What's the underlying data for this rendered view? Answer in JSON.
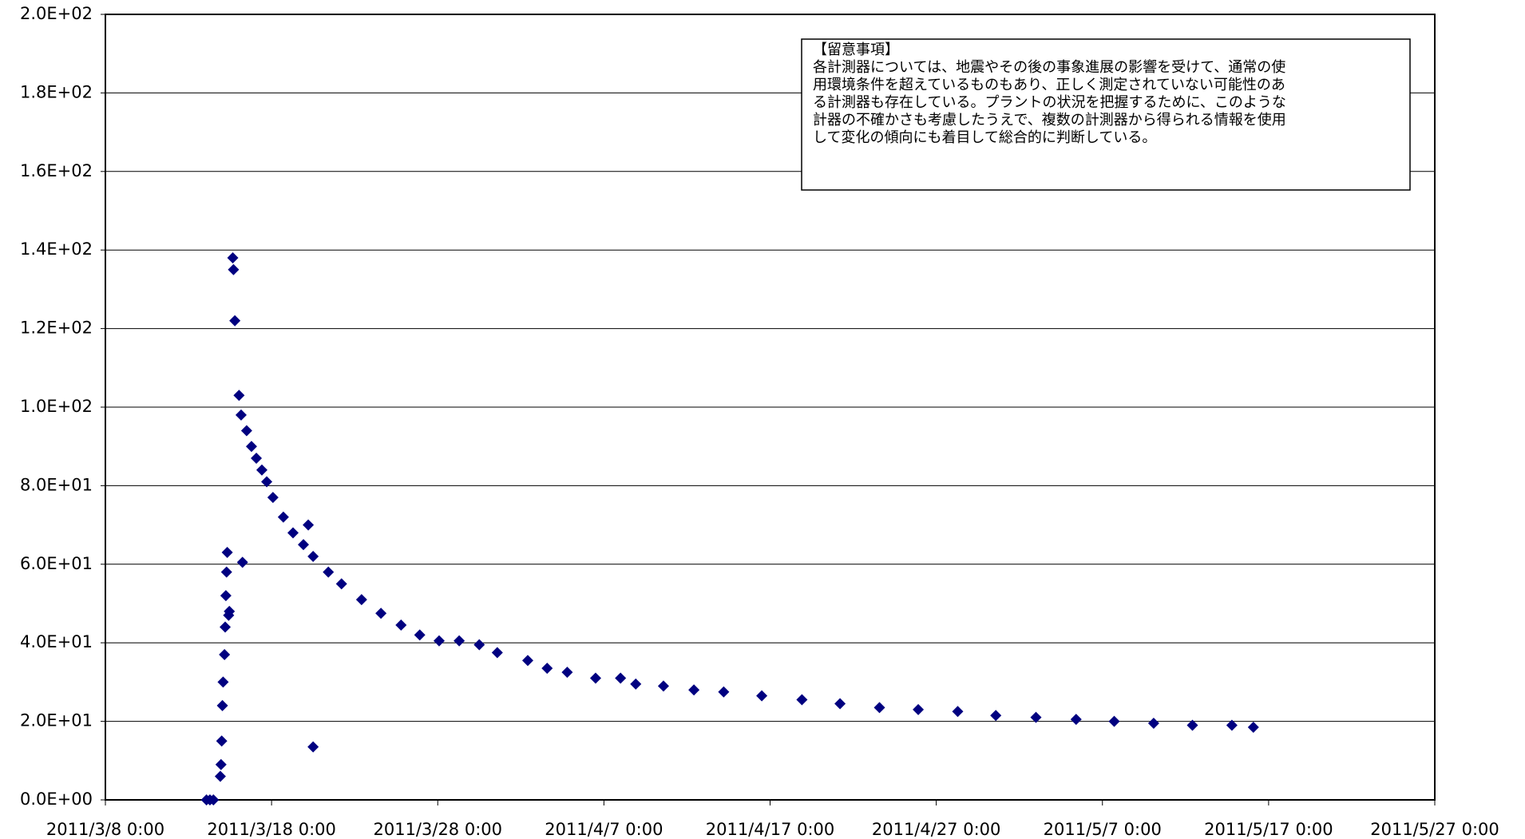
{
  "chart_data": {
    "type": "scatter",
    "color": "#000080",
    "grid": true,
    "annotation": {
      "title": "【留意事項】",
      "lines": [
        "各計測器については、地震やその後の事象進展の影響を受けて、通常の使",
        "用環境条件を超えているものもあり、正しく測定されていない可能性のあ",
        "る計測器も存在している。プラントの状況を把握するために、このような",
        "計器の不確かさも考慮したうえで、複数の計測器から得られる情報を使用",
        "して変化の傾向にも着目して総合的に判断している。"
      ]
    },
    "xlim": [
      "2011/3/8 0:00",
      "2011/5/27 0:00"
    ],
    "xticks": [
      "2011/3/8 0:00",
      "2011/3/18 0:00",
      "2011/3/28 0:00",
      "2011/4/7 0:00",
      "2011/4/17 0:00",
      "2011/4/27 0:00",
      "2011/5/7 0:00",
      "2011/5/17 0:00",
      "2011/5/27 0:00"
    ],
    "ylim": [
      0,
      200
    ],
    "yticks": [
      {
        "value": 0,
        "label": "0.0E+00"
      },
      {
        "value": 20,
        "label": "2.0E+01"
      },
      {
        "value": 40,
        "label": "4.0E+01"
      },
      {
        "value": 60,
        "label": "6.0E+01"
      },
      {
        "value": 80,
        "label": "8.0E+01"
      },
      {
        "value": 100,
        "label": "1.0E+02"
      },
      {
        "value": 120,
        "label": "1.2E+02"
      },
      {
        "value": 140,
        "label": "1.4E+02"
      },
      {
        "value": 160,
        "label": "1.6E+02"
      },
      {
        "value": 180,
        "label": "1.8E+02"
      },
      {
        "value": 200,
        "label": "2.0E+02"
      }
    ],
    "x": [
      "2011/3/14 2:00",
      "2011/3/14 7:00",
      "2011/3/14 12:00",
      "2011/3/14 22:00",
      "2011/3/14 23:00",
      "2011/3/15 0:00",
      "2011/3/15 1:00",
      "2011/3/15 2:00",
      "2011/3/15 4:00",
      "2011/3/15 5:00",
      "2011/3/15 6:00",
      "2011/3/15 7:00",
      "2011/3/15 8:00",
      "2011/3/15 10:00",
      "2011/3/15 11:00",
      "2011/3/15 16:00",
      "2011/3/15 17:00",
      "2011/3/15 19:00",
      "2011/3/16 1:00",
      "2011/3/16 4:00",
      "2011/3/16 6:00",
      "2011/3/16 12:00",
      "2011/3/16 19:00",
      "2011/3/17 2:00",
      "2011/3/17 10:00",
      "2011/3/17 17:00",
      "2011/3/18 2:00",
      "2011/3/18 17:00",
      "2011/3/19 7:00",
      "2011/3/19 22:00",
      "2011/3/20 5:00",
      "2011/3/20 12:00",
      "2011/3/20 12:00",
      "2011/3/21 10:00",
      "2011/3/22 5:00",
      "2011/3/23 10:00",
      "2011/3/24 14:00",
      "2011/3/25 19:00",
      "2011/3/26 22:00",
      "2011/3/28 2:00",
      "2011/3/29 7:00",
      "2011/3/30 12:00",
      "2011/3/31 14:00",
      "2011/4/2 10:00",
      "2011/4/3 14:00",
      "2011/4/4 19:00",
      "2011/4/6 12:00",
      "2011/4/8 0:00",
      "2011/4/8 22:00",
      "2011/4/10 14:00",
      "2011/4/12 10:00",
      "2011/4/14 5:00",
      "2011/4/16 12:00",
      "2011/4/18 22:00",
      "2011/4/21 5:00",
      "2011/4/23 14:00",
      "2011/4/25 22:00",
      "2011/4/28 7:00",
      "2011/4/30 14:00",
      "2011/5/3 0:00",
      "2011/5/5 10:00",
      "2011/5/7 17:00",
      "2011/5/10 2:00",
      "2011/5/12 10:00",
      "2011/5/14 19:00",
      "2011/5/16 2:00"
    ],
    "values": [
      0,
      0,
      0,
      6,
      9,
      15,
      24,
      30,
      37,
      44,
      52,
      58,
      63,
      47,
      48,
      138,
      135,
      122,
      103,
      98,
      60.5,
      94,
      90,
      87,
      84,
      81,
      77,
      72,
      68,
      65,
      70,
      13.5,
      62,
      58,
      55,
      51,
      47.5,
      44.5,
      42,
      40.5,
      40.5,
      39.5,
      37.5,
      35.5,
      33.5,
      32.5,
      31,
      31,
      29.5,
      29,
      28,
      27.5,
      26.5,
      25.5,
      24.5,
      23.5,
      23,
      22.5,
      21.5,
      21,
      20.5,
      20,
      19.5,
      19,
      19,
      18.5
    ]
  }
}
